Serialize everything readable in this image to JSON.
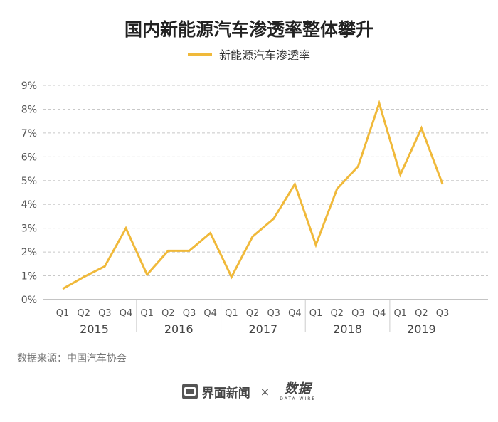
{
  "title": "国内新能源汽车渗透率整体攀升",
  "source": "数据来源：中国汽车协会",
  "footer": {
    "brand": "界面新闻",
    "separator": "×",
    "logo_text": "数据",
    "logo_sub": "DATA WIRE"
  },
  "colors": {
    "line": "#f0b93a",
    "grid": "#c8c8c8",
    "axis": "#888888"
  },
  "chart_data": {
    "type": "line",
    "title": "国内新能源汽车渗透率整体攀升",
    "xlabel": "",
    "ylabel": "",
    "ylim": [
      0,
      9
    ],
    "y_ticks": [
      "0%",
      "1%",
      "2%",
      "3%",
      "4%",
      "5%",
      "6%",
      "7%",
      "8%",
      "9%"
    ],
    "grid": true,
    "legend": "top-center",
    "groups": [
      {
        "label": "2015",
        "quarters": [
          "Q1",
          "Q2",
          "Q3",
          "Q4"
        ]
      },
      {
        "label": "2016",
        "quarters": [
          "Q1",
          "Q2",
          "Q3",
          "Q4"
        ]
      },
      {
        "label": "2017",
        "quarters": [
          "Q1",
          "Q2",
          "Q3",
          "Q4"
        ]
      },
      {
        "label": "2018",
        "quarters": [
          "Q1",
          "Q2",
          "Q3",
          "Q4"
        ]
      },
      {
        "label": "2019",
        "quarters": [
          "Q1",
          "Q2",
          "Q3"
        ]
      }
    ],
    "series": [
      {
        "name": "新能源汽车渗透率",
        "values": [
          0.45,
          0.95,
          1.4,
          3.0,
          1.05,
          2.05,
          2.05,
          2.8,
          0.95,
          2.65,
          3.4,
          4.85,
          2.3,
          4.65,
          5.6,
          8.25,
          5.25,
          7.2,
          4.85
        ]
      }
    ]
  }
}
